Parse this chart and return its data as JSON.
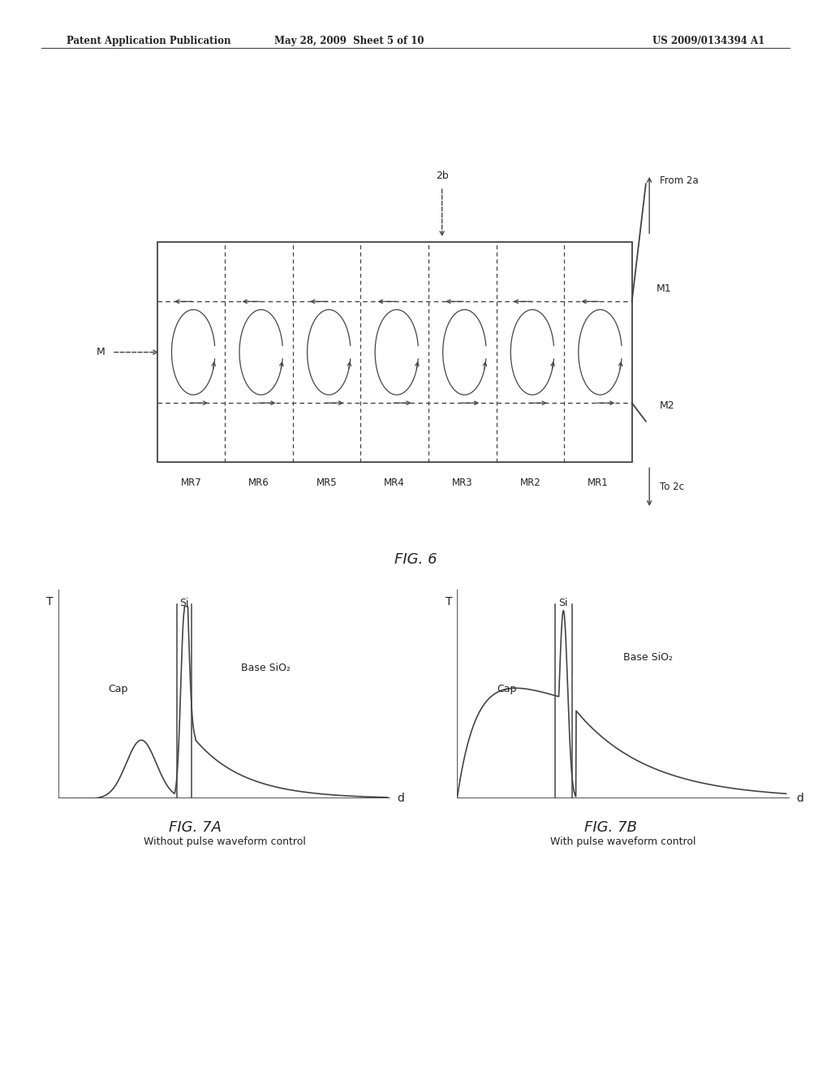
{
  "bg_color": "#ffffff",
  "header_left": "Patent Application Publication",
  "header_mid": "May 28, 2009  Sheet 5 of 10",
  "header_right": "US 2009/0134394 A1",
  "fig6_title": "FIG. 6",
  "fig7a_title": "FIG. 7A",
  "fig7b_title": "FIG. 7B",
  "fig7a_caption": "Without pulse waveform control",
  "fig7b_caption": "With pulse waveform control",
  "mr_labels": [
    "MR7",
    "MR6",
    "MR5",
    "MR4",
    "MR3",
    "MR2",
    "MR1"
  ],
  "label_2b": "2b",
  "label_From2a": "From 2a",
  "label_To2c": "To 2c",
  "label_M1": "M1",
  "label_M2": "M2",
  "label_M": "M",
  "fig7a_ylabel": "T",
  "fig7a_xlabel": "d",
  "fig7b_ylabel": "T",
  "fig7b_xlabel": "d",
  "fig7a_cap_label": "Cap",
  "fig7a_si_label": "Si",
  "fig7a_base_label": "Base SiO₂",
  "fig7b_cap_label": "Cap",
  "fig7b_si_label": "Si",
  "fig7b_base_label": "Base SiO₂",
  "line_color": "#444444",
  "text_color": "#222222"
}
